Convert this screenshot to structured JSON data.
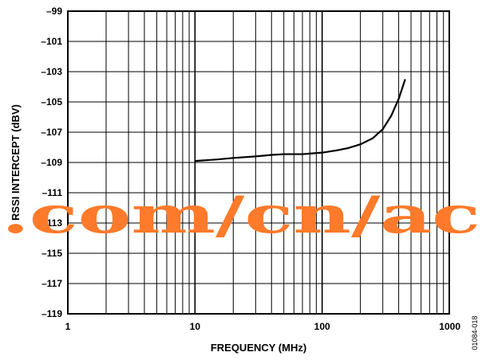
{
  "figure_id": "01084-018",
  "watermark": ".com/cn/ac",
  "chart_data": {
    "type": "line",
    "title": "",
    "xlabel": "FREQUENCY (MHz)",
    "ylabel": "RSSI INTERCEPT (dBV)",
    "xscale": "log",
    "xlim": [
      1,
      1000
    ],
    "ylim": [
      -119,
      -99
    ],
    "x_tick_labels": [
      "1",
      "10",
      "100",
      "1000"
    ],
    "y_tick_labels": [
      "–99",
      "–101",
      "–103",
      "–105",
      "–107",
      "–109",
      "–111",
      "–113",
      "–115",
      "–117",
      "–119"
    ],
    "grid": true,
    "series": [
      {
        "x": [
          10,
          15,
          20,
          30,
          40,
          50,
          70,
          100,
          130,
          160,
          200,
          250,
          300,
          350,
          400,
          450
        ],
        "y": [
          -108.9,
          -108.8,
          -108.7,
          -108.6,
          -108.5,
          -108.45,
          -108.45,
          -108.35,
          -108.2,
          -108.05,
          -107.8,
          -107.4,
          -106.8,
          -105.9,
          -104.8,
          -103.5
        ]
      }
    ]
  }
}
